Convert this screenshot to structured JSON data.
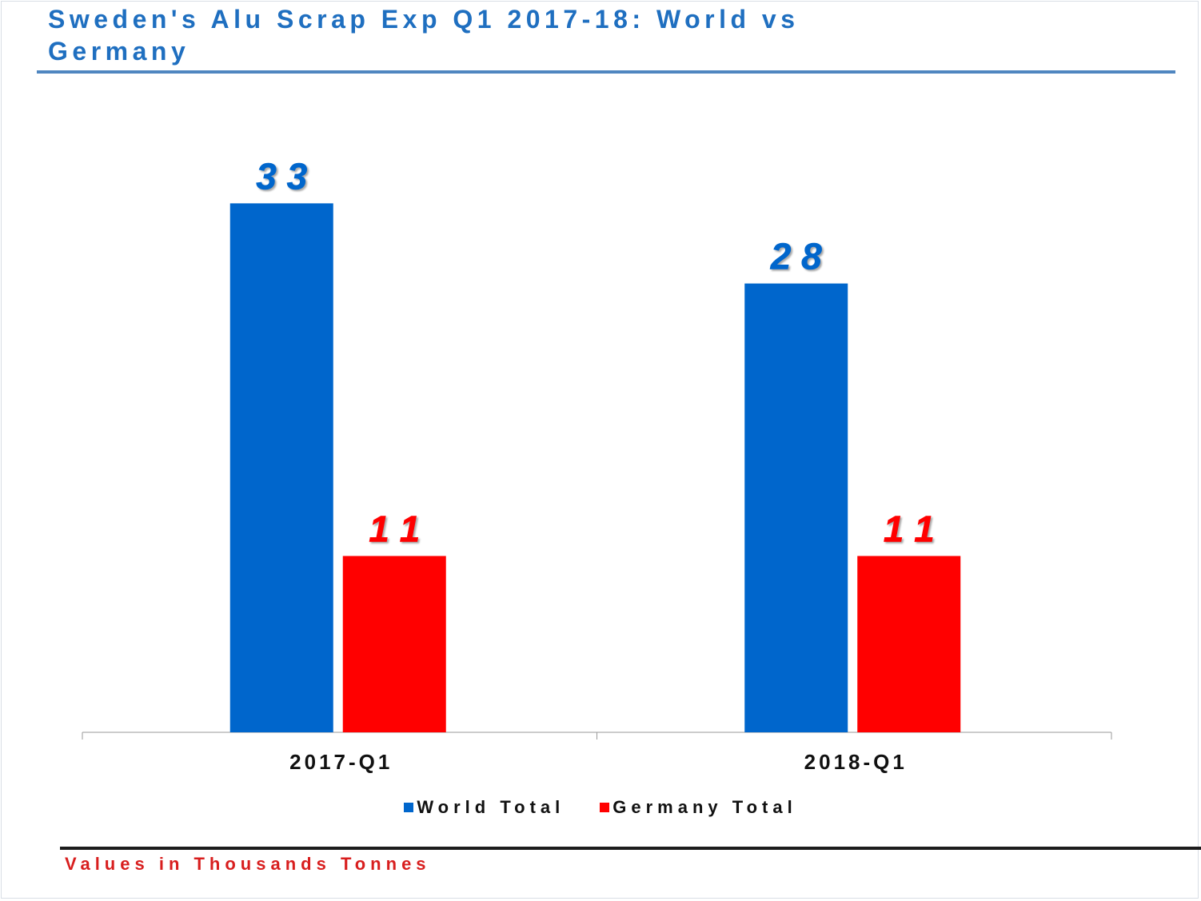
{
  "title": "Sweden's Alu Scrap Exp Q1 2017-18: World vs Germany",
  "footnote": "Values in Thousands Tonnes",
  "colors": {
    "world": "#0066cc",
    "germany": "#ff0000",
    "title": "#1f6fc0",
    "title_rule": "#4f86c0",
    "footnote": "#d81e1e"
  },
  "chart_data": {
    "type": "bar",
    "title": "Sweden's Alu Scrap Exp Q1 2017-18: World vs Germany",
    "xlabel": "",
    "ylabel": "",
    "categories": [
      "2017-Q1",
      "2018-Q1"
    ],
    "series": [
      {
        "name": "World Total",
        "values": [
          33,
          28
        ],
        "color": "#0066cc",
        "labels": [
          "3 3",
          "2 8"
        ]
      },
      {
        "name": "Germany Total",
        "values": [
          11,
          11
        ],
        "color": "#ff0000",
        "labels": [
          "1 1",
          "1 1"
        ]
      }
    ],
    "ylim": [
      0,
      35
    ],
    "grid": false,
    "legend": "bottom-center",
    "data_labels": true,
    "y_axis_visible": false
  }
}
